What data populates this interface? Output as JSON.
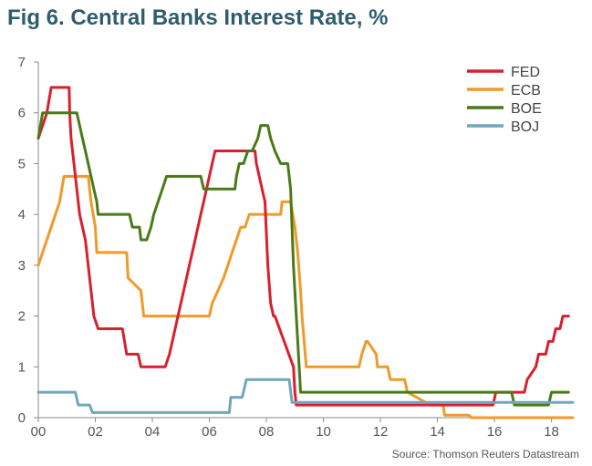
{
  "chart_data": {
    "type": "line",
    "title": "Fig 6. Central Banks Interest Rate, %",
    "source": "Source: Thomson Reuters Datastream",
    "xlim": [
      0,
      18.75
    ],
    "ylim": [
      0,
      7
    ],
    "x_ticks": [
      0,
      2,
      4,
      6,
      8,
      10,
      12,
      14,
      16,
      18
    ],
    "x_tick_labels": [
      "00",
      "02",
      "04",
      "06",
      "08",
      "10",
      "12",
      "14",
      "16",
      "18"
    ],
    "y_ticks": [
      0,
      1,
      2,
      3,
      4,
      5,
      6,
      7
    ],
    "y_tick_labels": [
      "0",
      "1",
      "2",
      "3",
      "4",
      "5",
      "6",
      "7"
    ],
    "grid": false,
    "legend_position": "top-right",
    "series": [
      {
        "name": "FED",
        "color": "#d9202e",
        "x": [
          0,
          0.15,
          0.3,
          0.45,
          1.08,
          1.1,
          1.15,
          1.25,
          1.35,
          1.45,
          1.55,
          1.65,
          1.75,
          1.85,
          1.95,
          2.1,
          2.95,
          3.1,
          3.5,
          3.6,
          4.45,
          4.6,
          4.7,
          4.8,
          4.9,
          5.0,
          5.1,
          5.2,
          5.3,
          5.4,
          5.5,
          5.6,
          5.7,
          5.8,
          5.9,
          6.0,
          6.1,
          6.2,
          6.3,
          6.4,
          6.5,
          7.6,
          7.65,
          7.75,
          7.85,
          7.95,
          8.05,
          8.15,
          8.25,
          8.3,
          8.95,
          9.0,
          9.05,
          15.95,
          16.05,
          17.05,
          17.15,
          17.45,
          17.55,
          17.8,
          17.9,
          18.05,
          18.15,
          18.3,
          18.4,
          18.6
        ],
        "values": [
          5.5,
          5.75,
          6.0,
          6.5,
          6.5,
          6.0,
          5.5,
          5.0,
          4.5,
          4.0,
          3.75,
          3.5,
          3.0,
          2.5,
          2.0,
          1.75,
          1.75,
          1.25,
          1.25,
          1.0,
          1.0,
          1.25,
          1.5,
          1.75,
          2.0,
          2.25,
          2.5,
          2.75,
          3.0,
          3.25,
          3.5,
          3.75,
          4.0,
          4.25,
          4.5,
          4.75,
          5.0,
          5.25,
          5.25,
          5.25,
          5.25,
          5.25,
          5.0,
          4.75,
          4.5,
          4.25,
          3.0,
          2.25,
          2.0,
          2.0,
          1.0,
          0.5,
          0.25,
          0.25,
          0.5,
          0.5,
          0.75,
          1.0,
          1.25,
          1.25,
          1.5,
          1.5,
          1.75,
          1.75,
          2.0,
          2.0
        ]
      },
      {
        "name": "ECB",
        "color": "#f09a28",
        "x": [
          0,
          0.15,
          0.3,
          0.45,
          0.6,
          0.75,
          0.9,
          1.75,
          1.85,
          2.0,
          2.05,
          3.1,
          3.15,
          3.6,
          3.7,
          6.0,
          6.1,
          6.3,
          6.5,
          6.65,
          6.8,
          6.95,
          7.1,
          7.25,
          7.4,
          7.55,
          7.7,
          8.5,
          8.55,
          8.85,
          9.0,
          9.1,
          9.2,
          9.25,
          9.4,
          11.25,
          11.35,
          11.5,
          11.55,
          11.85,
          11.9,
          12.25,
          12.35,
          12.85,
          12.95,
          13.75,
          14.2,
          14.25,
          15.1,
          15.2,
          16.2,
          16.3,
          18.75
        ],
        "values": [
          3.0,
          3.25,
          3.5,
          3.75,
          4.0,
          4.25,
          4.75,
          4.75,
          4.25,
          3.75,
          3.25,
          3.25,
          2.75,
          2.5,
          2.0,
          2.0,
          2.25,
          2.5,
          2.75,
          3.0,
          3.25,
          3.5,
          3.75,
          3.75,
          4.0,
          4.0,
          4.0,
          4.0,
          4.25,
          4.25,
          3.75,
          3.25,
          2.5,
          2.0,
          1.0,
          1.0,
          1.25,
          1.5,
          1.5,
          1.25,
          1.0,
          1.0,
          0.75,
          0.75,
          0.5,
          0.25,
          0.25,
          0.05,
          0.05,
          0.0,
          0.0,
          0.0,
          0.0
        ]
      },
      {
        "name": "BOE",
        "color": "#4a7a18",
        "x": [
          0,
          0.15,
          1.35,
          1.45,
          1.55,
          1.65,
          1.75,
          1.85,
          1.95,
          2.05,
          2.1,
          3.2,
          3.3,
          3.55,
          3.6,
          3.8,
          3.95,
          4.05,
          4.2,
          4.35,
          4.5,
          4.65,
          4.8,
          5.7,
          5.8,
          6.9,
          6.95,
          7.05,
          7.2,
          7.35,
          7.5,
          7.7,
          7.8,
          8.05,
          8.15,
          8.3,
          8.5,
          8.75,
          8.85,
          8.95,
          9.05,
          9.15,
          9.2,
          16.6,
          16.7,
          17.9,
          18.0,
          18.6
        ],
        "values": [
          5.5,
          6.0,
          6.0,
          5.75,
          5.5,
          5.25,
          5.0,
          4.75,
          4.5,
          4.25,
          4.0,
          4.0,
          3.75,
          3.75,
          3.5,
          3.5,
          3.75,
          4.0,
          4.25,
          4.5,
          4.75,
          4.75,
          4.75,
          4.75,
          4.5,
          4.5,
          4.75,
          5.0,
          5.0,
          5.25,
          5.25,
          5.5,
          5.75,
          5.75,
          5.5,
          5.25,
          5.0,
          5.0,
          4.5,
          3.0,
          2.0,
          1.0,
          0.5,
          0.5,
          0.25,
          0.25,
          0.5,
          0.5
        ]
      },
      {
        "name": "BOJ",
        "color": "#72a6bb",
        "x": [
          0,
          0.4,
          0.5,
          1.3,
          1.4,
          1.8,
          1.9,
          6.7,
          6.75,
          7.15,
          7.3,
          8.8,
          8.9,
          18.75
        ],
        "values": [
          0.5,
          0.5,
          0.5,
          0.5,
          0.25,
          0.25,
          0.1,
          0.1,
          0.4,
          0.4,
          0.75,
          0.75,
          0.3,
          0.3
        ]
      }
    ]
  }
}
